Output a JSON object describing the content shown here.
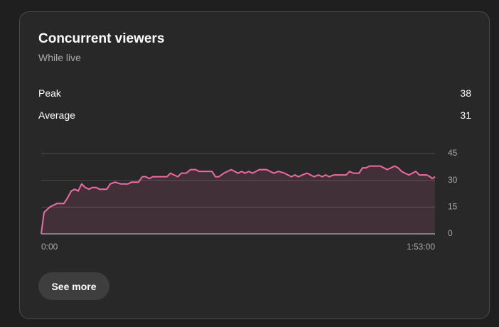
{
  "header": {
    "title": "Concurrent viewers",
    "subtitle": "While live"
  },
  "stats": [
    {
      "label": "Peak",
      "value": 38
    },
    {
      "label": "Average",
      "value": 31
    }
  ],
  "chart_data": {
    "type": "area",
    "x": [
      0,
      0.8,
      2.4,
      4.5,
      6.5,
      7.5,
      8.6,
      9.6,
      10.6,
      11.6,
      12.6,
      13.7,
      14.7,
      15.7,
      16.7,
      18.8,
      19.8,
      21.2,
      22.8,
      24.9,
      25.9,
      27.9,
      29.0,
      30.0,
      31.0,
      32.0,
      34.1,
      36.1,
      37.1,
      38.1,
      39.2,
      40.2,
      41.6,
      42.8,
      44.3,
      45.3,
      47.3,
      49.0,
      50.0,
      51.0,
      52.4,
      54.5,
      55.5,
      56.5,
      57.5,
      58.5,
      59.6,
      60.6,
      62.6,
      64.7,
      65.7,
      66.7,
      68.1,
      69.8,
      70.8,
      71.8,
      72.8,
      73.8,
      74.9,
      76.3,
      77.3,
      78.3,
      79.6,
      80.6,
      81.6,
      82.6,
      84.0,
      86.1,
      87.5,
      88.5,
      89.5,
      91.2,
      92.2,
      93.2,
      94.2,
      96.3,
      97.3,
      98.3,
      99.3,
      100.4,
      101.4,
      102.4,
      103.4,
      104.4,
      105.5,
      106.5,
      107.5,
      108.5,
      110.6,
      111.6,
      112.2,
      113
    ],
    "series": [
      {
        "color": "#f06aa6",
        "values": [
          0,
          12,
          15,
          17,
          17,
          20,
          24,
          25,
          24,
          28,
          26,
          25,
          26,
          26,
          25,
          25,
          28,
          29,
          28,
          28,
          29,
          29,
          32,
          32,
          31,
          32,
          32,
          32,
          34,
          33,
          32,
          34,
          34,
          36,
          36,
          35,
          35,
          35,
          32,
          32,
          34,
          36,
          35,
          34,
          35,
          34,
          35,
          34,
          36,
          36,
          35,
          34,
          35,
          34,
          33,
          32,
          33,
          32,
          33,
          34,
          33,
          32,
          33,
          32,
          33,
          32,
          33,
          33,
          33,
          35,
          34,
          34,
          37,
          37,
          38,
          38,
          38,
          37,
          36,
          37,
          38,
          37,
          35,
          34,
          33,
          34,
          35,
          33,
          33,
          32,
          31,
          32
        ]
      }
    ],
    "xlim": [
      0,
      113
    ],
    "ylim": [
      0,
      45
    ],
    "yticks": [
      0,
      15,
      30,
      45
    ],
    "xticks": [
      {
        "value": 0,
        "label": "0:00"
      },
      {
        "value": 113,
        "label": "1:53:00"
      }
    ],
    "grid": true
  },
  "button": {
    "label": "See more"
  }
}
